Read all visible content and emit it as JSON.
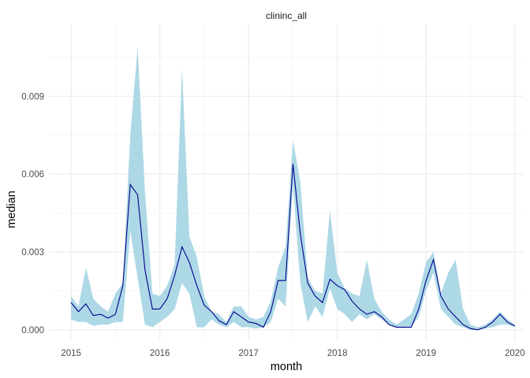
{
  "chart_data": {
    "type": "line",
    "title": "",
    "panel_label": "clininc_all",
    "xlabel": "month",
    "ylabel": "median",
    "x_ticks": [
      "2015",
      "2016",
      "2017",
      "2018",
      "2019",
      "2020"
    ],
    "y_ticks": [
      "0.000",
      "0.003",
      "0.006",
      "0.009"
    ],
    "xlim": [
      2014.75,
      2020.1
    ],
    "ylim": [
      -0.0004,
      0.0118
    ],
    "grid": true,
    "legend": "none",
    "band_color": "#add8e6",
    "line_color": "#00008b",
    "x": [
      2015.0,
      2015.083,
      2015.167,
      2015.25,
      2015.333,
      2015.417,
      2015.5,
      2015.583,
      2015.667,
      2015.75,
      2015.833,
      2015.917,
      2016.0,
      2016.083,
      2016.167,
      2016.25,
      2016.333,
      2016.417,
      2016.5,
      2016.583,
      2016.667,
      2016.75,
      2016.833,
      2016.917,
      2017.0,
      2017.083,
      2017.167,
      2017.25,
      2017.333,
      2017.417,
      2017.5,
      2017.583,
      2017.667,
      2017.75,
      2017.833,
      2017.917,
      2018.0,
      2018.083,
      2018.167,
      2018.25,
      2018.333,
      2018.417,
      2018.5,
      2018.583,
      2018.667,
      2018.75,
      2018.833,
      2018.917,
      2019.0,
      2019.083,
      2019.167,
      2019.25,
      2019.333,
      2019.417,
      2019.5,
      2019.583,
      2019.667,
      2019.75,
      2019.833,
      2019.917,
      2020.0
    ],
    "series": [
      {
        "name": "",
        "values": [
          0.00105,
          0.0007,
          0.001,
          0.00055,
          0.0006,
          0.00045,
          0.0006,
          0.0017,
          0.0056,
          0.0052,
          0.0023,
          0.0008,
          0.0008,
          0.0012,
          0.0021,
          0.0032,
          0.0026,
          0.0017,
          0.00095,
          0.0007,
          0.00035,
          0.0002,
          0.0007,
          0.0005,
          0.0003,
          0.00025,
          0.0001,
          0.0007,
          0.0019,
          0.0019,
          0.0064,
          0.0037,
          0.0018,
          0.0013,
          0.00105,
          0.00195,
          0.0017,
          0.00155,
          0.0011,
          0.0008,
          0.0006,
          0.0007,
          0.0005,
          0.0002,
          0.0001,
          0.0001,
          0.0001,
          0.0008,
          0.0019,
          0.0027,
          0.0013,
          0.0008,
          0.0005,
          0.0002,
          5e-05,
          0.0,
          0.0001,
          0.0003,
          0.0006,
          0.0003,
          0.00015
        ],
        "lower": [
          0.0004,
          0.0003,
          0.0003,
          0.00015,
          0.0002,
          0.0002,
          0.0003,
          0.0003,
          0.0038,
          0.002,
          0.0002,
          0.0001,
          0.0003,
          0.0005,
          0.0008,
          0.0018,
          0.0014,
          0.0001,
          0.0001,
          0.0004,
          0.0002,
          0.0001,
          0.0003,
          0.0001,
          0.0001,
          5e-05,
          0.0001,
          0.0003,
          0.0012,
          0.0009,
          0.0056,
          0.0018,
          0.0003,
          0.0009,
          0.0005,
          0.0016,
          0.0008,
          0.0006,
          0.0003,
          0.0006,
          0.0004,
          0.0006,
          0.0004,
          0.0002,
          0.0001,
          0.0001,
          0.0001,
          0.0005,
          0.0015,
          0.0022,
          0.0008,
          0.0005,
          0.0002,
          0.0001,
          0.0,
          0.0,
          5e-05,
          0.0001,
          0.0002,
          0.0002,
          0.0001
        ],
        "upper": [
          0.0013,
          0.0009,
          0.0024,
          0.0012,
          0.0009,
          0.0007,
          0.0014,
          0.0018,
          0.0075,
          0.0109,
          0.0053,
          0.0014,
          0.0013,
          0.0017,
          0.0025,
          0.0101,
          0.0036,
          0.0028,
          0.0013,
          0.0007,
          0.0006,
          0.0003,
          0.0009,
          0.0009,
          0.0005,
          0.0004,
          0.0005,
          0.0011,
          0.0024,
          0.0032,
          0.0073,
          0.0057,
          0.002,
          0.0015,
          0.0014,
          0.0046,
          0.0022,
          0.0016,
          0.0014,
          0.0013,
          0.0027,
          0.0012,
          0.0007,
          0.0004,
          0.0002,
          0.0004,
          0.0006,
          0.0014,
          0.0026,
          0.003,
          0.0014,
          0.0022,
          0.0027,
          0.0008,
          0.0002,
          0.0001,
          0.0002,
          0.0004,
          0.0007,
          0.0004,
          0.0002
        ]
      }
    ]
  }
}
